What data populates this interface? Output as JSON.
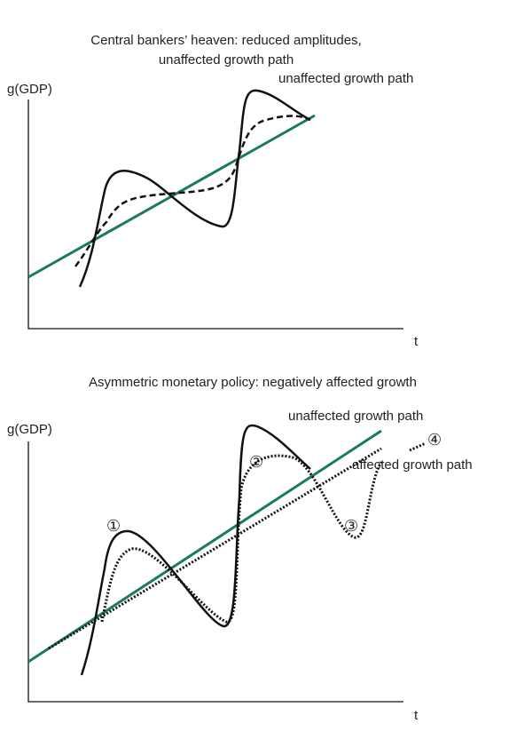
{
  "top_panel": {
    "title_line_1": "Central bankers’ heaven: reduced amplitudes,",
    "title_line_2": "unaffected growth path",
    "y_label": "g(GDP)",
    "x_label": "t",
    "trend_label": "unaffected growth path"
  },
  "bottom_panel": {
    "title": "Asymmetric monetary policy: negatively affected growth",
    "y_label": "g(GDP)",
    "x_label": "t",
    "trend_label": "unaffected growth path",
    "affected_label": "affected growth path",
    "markers": [
      "①",
      "②",
      "③",
      "④"
    ]
  }
}
